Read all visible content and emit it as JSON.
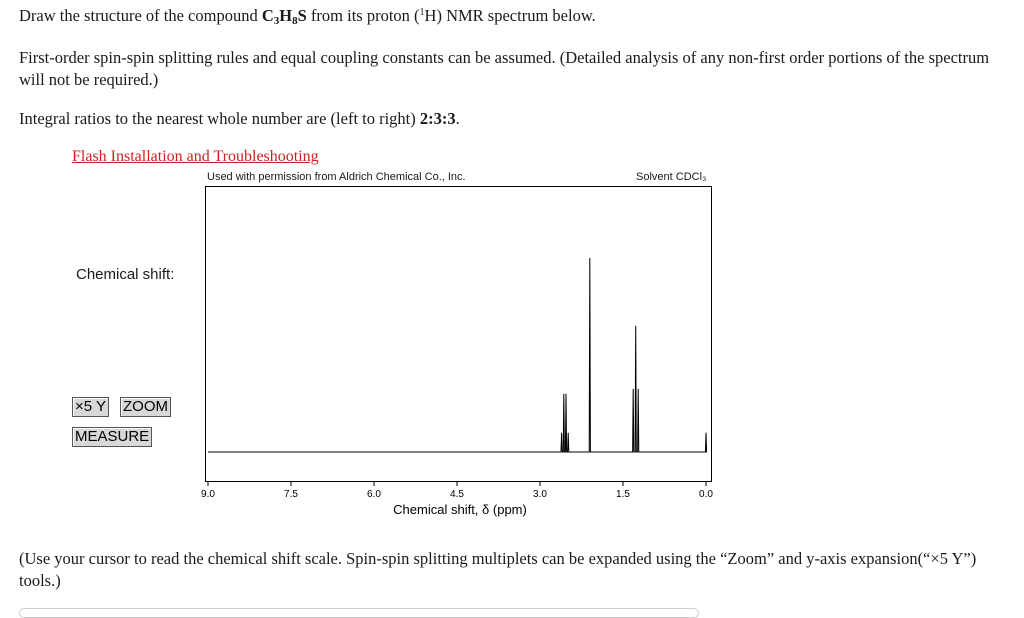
{
  "question": {
    "title_pre": "Draw the structure of the compound ",
    "formula": {
      "c": "C",
      "c_n": "3",
      "h": "H",
      "h_n": "8",
      "s": "S"
    },
    "title_mid": " from its proton (",
    "title_sup": "1",
    "title_post": "H) NMR spectrum below.",
    "rule_text": "First-order spin-spin splitting rules and equal coupling constants can be assumed. (Detailed analysis of any non-first order portions of the spectrum will not be required.)",
    "integral_pre": "Integral ratios to the nearest whole number are (left to right) ",
    "integral_ratio": "2:3:3",
    "integral_post": ".",
    "bottom_note": "(Use your cursor to read the chemical shift scale. Spin-spin splitting multiplets can be expanded using the “Zoom” and y-axis expansion(“×5 Y”) tools.)"
  },
  "link": {
    "flash_label": "Flash Installation and Troubleshooting"
  },
  "spectrum": {
    "permission_text": "Used with permission from Aldrich Chemical Co., Inc.",
    "solvent_text": "Solvent CDCl₃",
    "chemical_shift_label": "Chemical shift:",
    "x_axis_label": "Chemical shift, δ (ppm)",
    "tick_labels": [
      "9.0",
      "7.5",
      "6.0",
      "4.5",
      "3.0",
      "1.5",
      "0.0"
    ]
  },
  "tools": {
    "x5y_label": "×5 Y",
    "zoom_label": "ZOOM",
    "measure_label": "MEASURE"
  },
  "chart_data": {
    "type": "line",
    "x_range": [
      9.0,
      0.0
    ],
    "xlabel": "Chemical shift, δ (ppm)",
    "ylabel": "",
    "peaks": [
      {
        "shift_ppm": 2.55,
        "relative_height": 0.3,
        "multiplicity": "quartet"
      },
      {
        "shift_ppm": 2.1,
        "relative_height": 1.0,
        "multiplicity": "singlet"
      },
      {
        "shift_ppm": 1.27,
        "relative_height": 0.65,
        "multiplicity": "triplet"
      },
      {
        "shift_ppm": 0.0,
        "relative_height": 0.1,
        "multiplicity": "singlet"
      }
    ],
    "integral_ratio": [
      2,
      3,
      3
    ]
  }
}
